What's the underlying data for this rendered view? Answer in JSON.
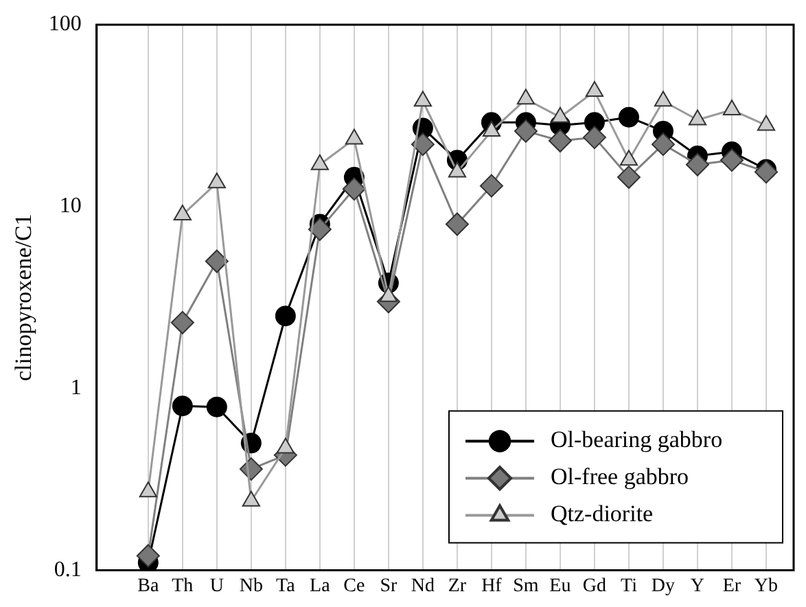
{
  "chart_data": {
    "type": "line",
    "ylabel": "clinopyroxene/C1",
    "categories": [
      "Ba",
      "Th",
      "U",
      "Nb",
      "Ta",
      "La",
      "Ce",
      "Sr",
      "Nd",
      "Zr",
      "Hf",
      "Sm",
      "Eu",
      "Gd",
      "Ti",
      "Dy",
      "Y",
      "Er",
      "Yb"
    ],
    "series": [
      {
        "name": "Ol-bearing gabbro",
        "color": "#000000",
        "marker": "circle",
        "values": [
          0.11,
          0.8,
          0.79,
          0.5,
          2.5,
          8,
          14.5,
          3.8,
          27,
          18,
          29,
          29,
          28,
          29,
          31,
          26,
          19,
          20,
          16
        ]
      },
      {
        "name": "Ol-free gabbro",
        "color": "#777777",
        "marker": "diamond",
        "values": [
          0.12,
          2.3,
          5,
          0.36,
          0.43,
          7.5,
          12.5,
          3,
          22,
          8,
          13,
          26,
          23,
          24,
          14.5,
          22,
          17,
          18,
          15.5
        ]
      },
      {
        "name": "Qtz-diorite",
        "color": "#cccccc",
        "marker": "triangle",
        "values": [
          0.27,
          9,
          13.5,
          0.24,
          0.47,
          17,
          23.5,
          3.2,
          38,
          15.5,
          26,
          39,
          31,
          43,
          18,
          38,
          30,
          34,
          28
        ]
      }
    ],
    "log": "y",
    "ylim": [
      0.1,
      100
    ],
    "yticks": [
      0.1,
      1,
      10,
      100
    ],
    "grid": "x",
    "legend": "bottom right"
  }
}
